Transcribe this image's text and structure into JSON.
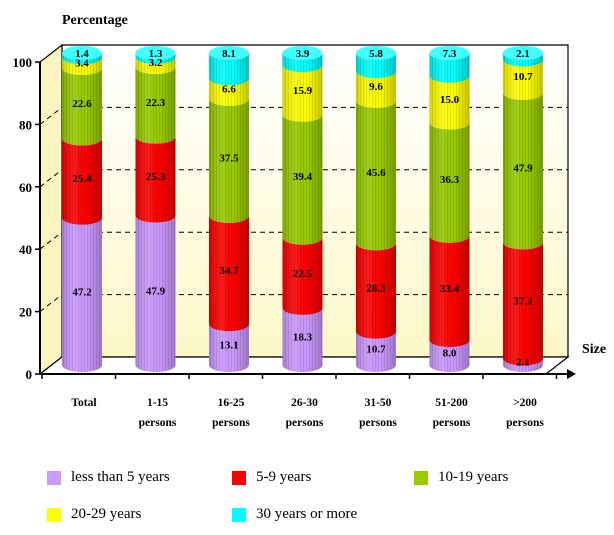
{
  "chart_data": {
    "type": "bar",
    "stacked": true,
    "title": "",
    "ylabel": "Percentage",
    "xlabel": "Size",
    "ylim": [
      0,
      100
    ],
    "yticks": [
      "0",
      "20",
      "40",
      "60",
      "80",
      "100"
    ],
    "grid": true,
    "categories": [
      [
        "Total",
        ""
      ],
      [
        "1-15",
        "persons"
      ],
      [
        "16-25",
        "persons"
      ],
      [
        "26-30",
        "persons"
      ],
      [
        "31-50",
        "persons"
      ],
      [
        "51-200",
        "persons"
      ],
      [
        ">200",
        "persons"
      ]
    ],
    "series": [
      {
        "name": "less than 5 years",
        "color": "#cc99ff",
        "values": [
          47.2,
          47.9,
          13.1,
          18.3,
          10.7,
          8.0,
          2.1
        ]
      },
      {
        "name": "5-9 years",
        "color": "#ff0000",
        "values": [
          25.4,
          25.3,
          34.7,
          22.5,
          28.3,
          33.4,
          37.2
        ]
      },
      {
        "name": "10-19 years",
        "color": "#99cc00",
        "values": [
          22.6,
          22.3,
          37.5,
          39.4,
          45.6,
          36.3,
          47.9
        ]
      },
      {
        "name": "20-29 years",
        "color": "#ffff00",
        "values": [
          3.4,
          3.2,
          6.6,
          15.9,
          9.6,
          15.0,
          10.7
        ]
      },
      {
        "name": "30 years or more",
        "color": "#00ffff",
        "values": [
          1.4,
          1.3,
          8.1,
          3.9,
          5.8,
          7.3,
          2.1
        ]
      }
    ],
    "labels": [
      [
        "47.2",
        "25.4",
        "22.6",
        "3.4",
        "1.4"
      ],
      [
        "47.9",
        "25.3",
        "22.3",
        "3.2",
        "1.3"
      ],
      [
        "13.1",
        "34.7",
        "37.5",
        "6.6",
        "8.1"
      ],
      [
        "18.3",
        "22.5",
        "39.4",
        "15.9",
        "3.9"
      ],
      [
        "10.7",
        "28.3",
        "45.6",
        "9.6",
        "5.8"
      ],
      [
        "8.0",
        "33.4",
        "36.3",
        "15.0",
        "7.3"
      ],
      [
        "2.1",
        "37.2",
        "47.9",
        "10.7",
        "2.1"
      ]
    ],
    "legend_position": "bottom"
  }
}
